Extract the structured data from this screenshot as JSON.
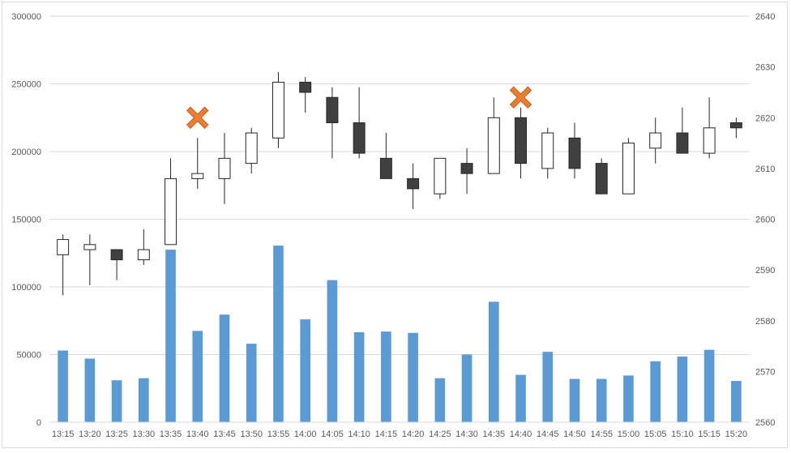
{
  "chart_data": {
    "type": "candlestick-volume",
    "title": "",
    "categories": [
      "13:15",
      "13:20",
      "13:25",
      "13:30",
      "13:35",
      "13:40",
      "13:45",
      "13:50",
      "13:55",
      "14:00",
      "14:05",
      "14:10",
      "14:15",
      "14:20",
      "14:25",
      "14:30",
      "14:35",
      "14:40",
      "14:45",
      "14:50",
      "14:55",
      "15:00",
      "15:05",
      "15:10",
      "15:15",
      "15:20"
    ],
    "volume_axis": {
      "ylim": [
        0,
        300000
      ],
      "ticks": [
        "0",
        "50000",
        "100000",
        "150000",
        "200000",
        "250000",
        "300000"
      ],
      "position": "left"
    },
    "price_axis": {
      "ylim": [
        2560,
        2640
      ],
      "ticks": [
        "2560",
        "2570",
        "2580",
        "2590",
        "2600",
        "2610",
        "2620",
        "2630",
        "2640"
      ],
      "position": "right"
    },
    "volume": [
      53000,
      47000,
      31000,
      32500,
      127500,
      67500,
      79500,
      58000,
      130500,
      76000,
      105000,
      66500,
      67000,
      66000,
      32500,
      50000,
      89000,
      35000,
      52000,
      32000,
      32000,
      34500,
      45000,
      48500,
      53500,
      30500
    ],
    "ohlc": [
      {
        "open": 2593,
        "high": 2597,
        "low": 2585,
        "close": 2596
      },
      {
        "open": 2594,
        "high": 2597,
        "low": 2587,
        "close": 2595
      },
      {
        "open": 2594,
        "high": 2594,
        "low": 2588,
        "close": 2592
      },
      {
        "open": 2592,
        "high": 2598,
        "low": 2591,
        "close": 2594
      },
      {
        "open": 2595,
        "high": 2612,
        "low": 2595,
        "close": 2608
      },
      {
        "open": 2608,
        "high": 2616,
        "low": 2606,
        "close": 2609
      },
      {
        "open": 2608,
        "high": 2617,
        "low": 2603,
        "close": 2612
      },
      {
        "open": 2611,
        "high": 2618,
        "low": 2609,
        "close": 2617
      },
      {
        "open": 2616,
        "high": 2629,
        "low": 2614,
        "close": 2627
      },
      {
        "open": 2627,
        "high": 2628,
        "low": 2621,
        "close": 2625
      },
      {
        "open": 2624,
        "high": 2626,
        "low": 2612,
        "close": 2619
      },
      {
        "open": 2619,
        "high": 2626,
        "low": 2612,
        "close": 2613
      },
      {
        "open": 2612,
        "high": 2617,
        "low": 2608,
        "close": 2608
      },
      {
        "open": 2608,
        "high": 2611,
        "low": 2602,
        "close": 2606
      },
      {
        "open": 2605,
        "high": 2612,
        "low": 2604,
        "close": 2612
      },
      {
        "open": 2611,
        "high": 2614,
        "low": 2605,
        "close": 2609
      },
      {
        "open": 2609,
        "high": 2624,
        "low": 2609,
        "close": 2620
      },
      {
        "open": 2620,
        "high": 2622,
        "low": 2608,
        "close": 2611
      },
      {
        "open": 2610,
        "high": 2618,
        "low": 2608,
        "close": 2617
      },
      {
        "open": 2616,
        "high": 2619,
        "low": 2608,
        "close": 2610
      },
      {
        "open": 2611,
        "high": 2612,
        "low": 2605,
        "close": 2605
      },
      {
        "open": 2605,
        "high": 2616,
        "low": 2605,
        "close": 2615
      },
      {
        "open": 2614,
        "high": 2620,
        "low": 2611,
        "close": 2617
      },
      {
        "open": 2617,
        "high": 2622,
        "low": 2613,
        "close": 2613
      },
      {
        "open": 2613,
        "high": 2624,
        "low": 2612,
        "close": 2618
      },
      {
        "open": 2619,
        "high": 2620,
        "low": 2616,
        "close": 2618
      }
    ],
    "markers": [
      {
        "category": "13:40",
        "price": 2620
      },
      {
        "category": "14:40",
        "price": 2624
      }
    ],
    "grid": true,
    "legend": "none",
    "colors": {
      "volume": "#5b9bd5",
      "up_fill": "#ffffff",
      "down_fill": "#404040",
      "candle_stroke": "#262626",
      "marker": "#ed7d31",
      "grid": "#d9d9d9",
      "axis_text": "#595959"
    }
  }
}
